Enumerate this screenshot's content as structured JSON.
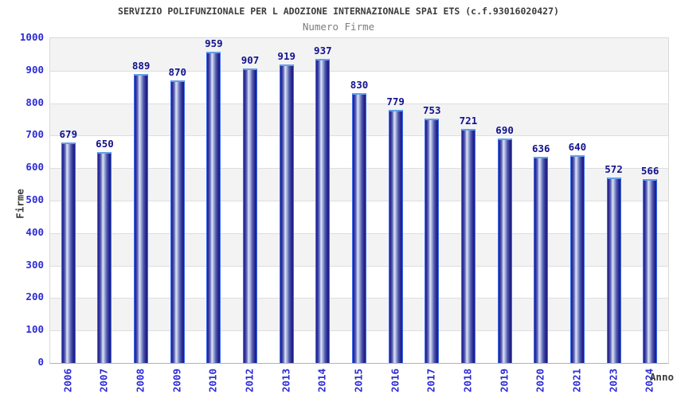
{
  "chart_data": {
    "type": "bar",
    "title": "SERVIZIO POLIFUNZIONALE PER L ADOZIONE INTERNAZIONALE SPAI ETS (c.f.93016020427)",
    "subtitle": "Numero Firme",
    "xlabel": "Anno",
    "ylabel": "Firme",
    "categories": [
      "2006",
      "2007",
      "2008",
      "2009",
      "2010",
      "2012",
      "2013",
      "2014",
      "2015",
      "2016",
      "2017",
      "2018",
      "2019",
      "2020",
      "2021",
      "2023",
      "2024"
    ],
    "values": [
      679,
      650,
      889,
      870,
      959,
      907,
      919,
      937,
      830,
      779,
      753,
      721,
      690,
      636,
      640,
      572,
      566
    ],
    "ylim": [
      0,
      1000
    ],
    "ytick_step": 100,
    "legend": "none",
    "grid": "horizontal gridlines every 100 with alternating gray/white bands",
    "x_tick_rotation_degrees": -90,
    "colors": {
      "axis_tick_label": "#2b2bd6",
      "value_label": "#12128e",
      "bar_edge_border": "#3a6cf0",
      "bar_top_cap": "#63a0ec",
      "bar_gradient_dark": "#23238c",
      "bar_gradient_light": "#dfe5f6",
      "band_gray": "#f3f3f3",
      "band_white": "#ffffff",
      "gridline": "#dedede",
      "title_text": "#3c3c3c",
      "subtitle_text": "#7d7d7d"
    }
  }
}
